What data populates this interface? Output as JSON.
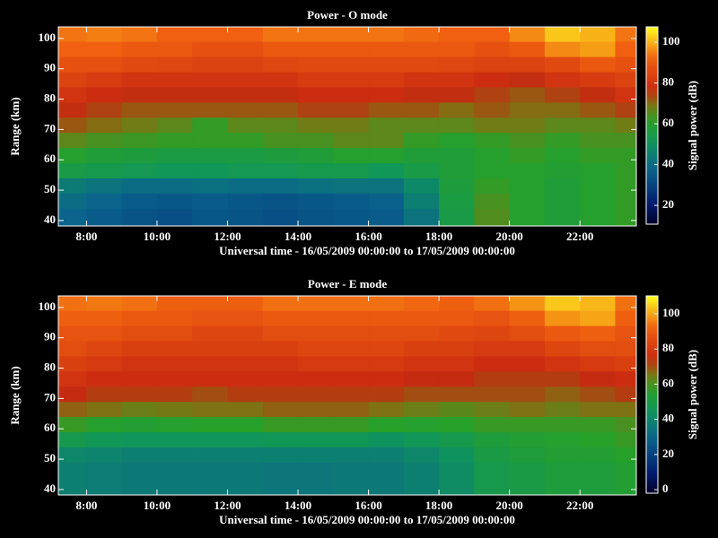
{
  "chart_data": [
    {
      "type": "heatmap",
      "title": "Power - O mode",
      "xlabel": "Universal time - 16/05/2009 00:00:00 to 17/05/2009 00:00:00",
      "ylabel": "Range (km)",
      "colorbar_label": "Signal power (dB)",
      "xbins": [
        7.2,
        8,
        9,
        10,
        11,
        12,
        13,
        14,
        15,
        16,
        17,
        18,
        19,
        20,
        21,
        22,
        23,
        23.6
      ],
      "ybins": [
        38.2,
        44,
        49,
        54,
        59,
        64,
        69,
        74,
        79,
        84,
        89,
        94,
        99,
        103.8
      ],
      "xlim": [
        7.2,
        23.6
      ],
      "ylim": [
        38.2,
        103.8
      ],
      "clim": [
        10.8,
        107.5
      ],
      "xticks": [
        {
          "value": 8,
          "label": "8:00"
        },
        {
          "value": 10,
          "label": "10:00"
        },
        {
          "value": 12,
          "label": "12:00"
        },
        {
          "value": 14,
          "label": "14:00"
        },
        {
          "value": 16,
          "label": "16:00"
        },
        {
          "value": 18,
          "label": "18:00"
        },
        {
          "value": 20,
          "label": "20:00"
        },
        {
          "value": 22,
          "label": "22:00"
        }
      ],
      "yticks": [
        40,
        50,
        60,
        70,
        80,
        90,
        100
      ],
      "cticks": [
        20,
        40,
        60,
        80,
        100
      ],
      "values": [
        [
          38,
          36,
          34,
          33,
          35,
          34,
          33,
          34,
          35,
          36,
          42,
          55,
          65,
          60,
          58,
          60,
          62
        ],
        [
          40,
          38,
          36,
          35,
          36,
          35,
          34,
          35,
          36,
          37,
          45,
          56,
          64,
          60,
          58,
          60,
          62
        ],
        [
          44,
          42,
          40,
          40,
          41,
          40,
          40,
          41,
          42,
          42,
          48,
          57,
          62,
          60,
          58,
          60,
          62
        ],
        [
          55,
          54,
          53,
          52,
          52,
          53,
          53,
          54,
          54,
          52,
          55,
          58,
          60,
          60,
          59,
          60,
          62
        ],
        [
          60,
          58,
          57,
          56,
          56,
          56,
          57,
          58,
          60,
          60,
          58,
          58,
          60,
          62,
          60,
          62,
          62
        ],
        [
          66,
          64,
          63,
          62,
          62,
          62,
          64,
          64,
          66,
          66,
          62,
          60,
          62,
          64,
          62,
          64,
          64
        ],
        [
          72,
          70,
          68,
          66,
          62,
          66,
          66,
          68,
          68,
          66,
          66,
          66,
          68,
          68,
          66,
          66,
          68
        ],
        [
          76,
          74,
          72,
          72,
          72,
          72,
          72,
          74,
          74,
          72,
          72,
          70,
          72,
          70,
          70,
          72,
          74
        ],
        [
          80,
          78,
          76,
          76,
          76,
          76,
          76,
          78,
          78,
          78,
          76,
          76,
          74,
          72,
          74,
          76,
          80
        ],
        [
          84,
          82,
          80,
          80,
          80,
          80,
          80,
          82,
          82,
          82,
          80,
          80,
          78,
          76,
          80,
          82,
          84
        ],
        [
          88,
          88,
          86,
          85,
          84,
          84,
          85,
          86,
          86,
          86,
          86,
          85,
          84,
          84,
          86,
          90,
          88
        ],
        [
          92,
          92,
          90,
          90,
          88,
          88,
          90,
          90,
          90,
          90,
          90,
          90,
          88,
          90,
          96,
          98,
          92
        ],
        [
          94,
          95,
          94,
          92,
          92,
          92,
          94,
          94,
          94,
          94,
          93,
          92,
          92,
          96,
          102,
          100,
          94
        ]
      ]
    },
    {
      "type": "heatmap",
      "title": "Power - E mode",
      "xlabel": "Universal time - 16/05/2009 00:00:00 to 17/05/2009 00:00:00",
      "ylabel": "Range (km)",
      "colorbar_label": "Signal power (dB)",
      "xbins": [
        7.2,
        8,
        9,
        10,
        11,
        12,
        13,
        14,
        15,
        16,
        17,
        18,
        19,
        20,
        21,
        22,
        23,
        23.6
      ],
      "ybins": [
        38.2,
        44,
        49,
        54,
        59,
        64,
        69,
        74,
        79,
        84,
        89,
        94,
        99,
        103.8
      ],
      "xlim": [
        7.2,
        23.6
      ],
      "ylim": [
        38.2,
        103.8
      ],
      "clim": [
        -2,
        110.2
      ],
      "xticks": [
        {
          "value": 8,
          "label": "8:00"
        },
        {
          "value": 10,
          "label": "10:00"
        },
        {
          "value": 12,
          "label": "12:00"
        },
        {
          "value": 14,
          "label": "14:00"
        },
        {
          "value": 16,
          "label": "16:00"
        },
        {
          "value": 18,
          "label": "18:00"
        },
        {
          "value": 20,
          "label": "20:00"
        },
        {
          "value": 22,
          "label": "22:00"
        }
      ],
      "yticks": [
        40,
        50,
        60,
        70,
        80,
        90,
        100
      ],
      "cticks": [
        0,
        20,
        40,
        60,
        80,
        100
      ],
      "values": [
        [
          38,
          37,
          36,
          36,
          36,
          36,
          35,
          35,
          36,
          36,
          38,
          42,
          48,
          50,
          52,
          52,
          54
        ],
        [
          38,
          37,
          36,
          36,
          36,
          36,
          35,
          35,
          36,
          36,
          38,
          42,
          48,
          50,
          52,
          52,
          54
        ],
        [
          40,
          39,
          38,
          38,
          38,
          38,
          38,
          38,
          38,
          38,
          40,
          44,
          50,
          52,
          54,
          54,
          56
        ],
        [
          48,
          46,
          45,
          45,
          45,
          45,
          46,
          46,
          46,
          44,
          46,
          48,
          52,
          54,
          55,
          56,
          58
        ],
        [
          58,
          55,
          54,
          55,
          56,
          56,
          58,
          58,
          58,
          56,
          55,
          56,
          58,
          58,
          58,
          58,
          60
        ],
        [
          68,
          66,
          64,
          65,
          66,
          66,
          68,
          68,
          68,
          66,
          64,
          62,
          64,
          66,
          64,
          66,
          66
        ],
        [
          74,
          72,
          72,
          72,
          70,
          72,
          72,
          72,
          72,
          72,
          70,
          70,
          70,
          70,
          68,
          70,
          72
        ],
        [
          78,
          76,
          76,
          76,
          76,
          76,
          76,
          76,
          76,
          76,
          74,
          74,
          72,
          72,
          72,
          74,
          76
        ],
        [
          82,
          80,
          78,
          78,
          78,
          78,
          78,
          80,
          80,
          80,
          78,
          78,
          76,
          76,
          78,
          80,
          82
        ],
        [
          86,
          84,
          82,
          82,
          82,
          82,
          82,
          84,
          84,
          84,
          82,
          82,
          80,
          80,
          84,
          86,
          86
        ],
        [
          88,
          88,
          86,
          86,
          84,
          84,
          86,
          86,
          86,
          86,
          86,
          85,
          84,
          86,
          90,
          92,
          88
        ],
        [
          92,
          92,
          90,
          90,
          88,
          88,
          90,
          90,
          90,
          90,
          90,
          90,
          88,
          92,
          98,
          100,
          92
        ],
        [
          94,
          95,
          94,
          92,
          92,
          92,
          94,
          94,
          94,
          94,
          93,
          92,
          94,
          98,
          104,
          102,
          94
        ]
      ]
    }
  ]
}
